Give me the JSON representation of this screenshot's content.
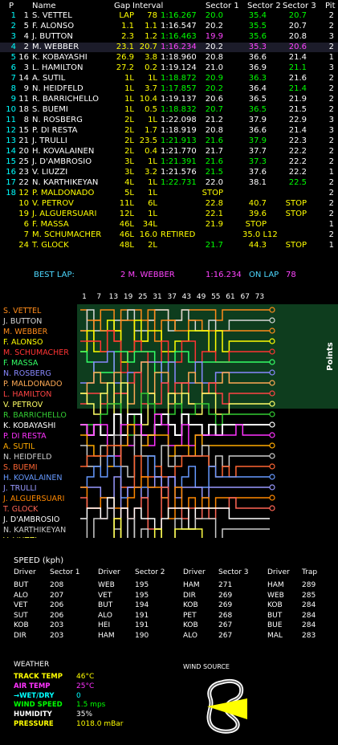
{
  "header": {
    "labels": [
      "P",
      "Name",
      "Gap",
      "Interval",
      "Sector 1",
      "Sector 2",
      "Sector 3",
      "Pit"
    ]
  },
  "colors": {
    "white": "#ffffff",
    "yellow": "#ffff00",
    "green": "#00ff00",
    "purple": "#ff44ff",
    "cyan": "#00ffff",
    "best": "#4dd8ff"
  },
  "timing": [
    {
      "p": "1",
      "num": "1",
      "name": "S. VETTEL",
      "gap": "LAP",
      "interval": "78",
      "time": "1:16.267",
      "s1": "20.0",
      "s2": "35.4",
      "s3": "20.7",
      "pit": "2",
      "c": {
        "p": "cyan",
        "num": "white",
        "name": "white",
        "gap": "yellow",
        "interval": "yellow",
        "time": "green",
        "s1": "green",
        "s2": "green",
        "s3": "green",
        "pit": "white"
      }
    },
    {
      "p": "2",
      "num": "5",
      "name": "F. ALONSO",
      "gap": "1.1",
      "interval": "1.1",
      "time": "1:16.547",
      "s1": "20.2",
      "s2": "35.5",
      "s3": "20.7",
      "pit": "2",
      "c": {
        "p": "cyan",
        "num": "white",
        "name": "white",
        "gap": "yellow",
        "interval": "yellow",
        "time": "white",
        "s1": "white",
        "s2": "green",
        "s3": "white",
        "pit": "white"
      }
    },
    {
      "p": "3",
      "num": "4",
      "name": "J. BUTTON",
      "gap": "2.3",
      "interval": "1.2",
      "time": "1:16.463",
      "s1": "19.9",
      "s2": "35.6",
      "s3": "20.8",
      "pit": "3",
      "c": {
        "p": "cyan",
        "num": "white",
        "name": "white",
        "gap": "yellow",
        "interval": "yellow",
        "time": "green",
        "s1": "purple",
        "s2": "green",
        "s3": "white",
        "pit": "white"
      }
    },
    {
      "p": "4",
      "num": "2",
      "name": "M. WEBBER",
      "gap": "23.1",
      "interval": "20.7",
      "time": "1:16.234",
      "s1": "20.2",
      "s2": "35.3",
      "s3": "20.6",
      "pit": "2",
      "c": {
        "p": "cyan",
        "num": "white",
        "name": "white",
        "gap": "yellow",
        "interval": "yellow",
        "time": "purple",
        "s1": "white",
        "s2": "purple",
        "s3": "purple",
        "pit": "white"
      },
      "hl": true
    },
    {
      "p": "5",
      "num": "16",
      "name": "K. KOBAYASHI",
      "gap": "26.9",
      "interval": "3.8",
      "time": "1:18.960",
      "s1": "20.8",
      "s2": "36.6",
      "s3": "21.4",
      "pit": "1",
      "c": {
        "p": "cyan",
        "num": "white",
        "name": "white",
        "gap": "yellow",
        "interval": "yellow",
        "time": "white",
        "s1": "white",
        "s2": "white",
        "s3": "white",
        "pit": "white"
      }
    },
    {
      "p": "6",
      "num": "3",
      "name": "L. HAMILTON",
      "gap": "27.2",
      "interval": "0.2",
      "time": "1:19.124",
      "s1": "21.0",
      "s2": "36.9",
      "s3": "21.1",
      "pit": "3",
      "c": {
        "p": "cyan",
        "num": "white",
        "name": "white",
        "gap": "yellow",
        "interval": "yellow",
        "time": "white",
        "s1": "white",
        "s2": "white",
        "s3": "green",
        "pit": "white"
      }
    },
    {
      "p": "7",
      "num": "14",
      "name": "A. SUTIL",
      "gap": "1L",
      "interval": "1L",
      "time": "1:18.872",
      "s1": "20.9",
      "s2": "36.3",
      "s3": "21.6",
      "pit": "2",
      "c": {
        "p": "cyan",
        "num": "white",
        "name": "white",
        "gap": "yellow",
        "interval": "yellow",
        "time": "green",
        "s1": "green",
        "s2": "green",
        "s3": "white",
        "pit": "white"
      }
    },
    {
      "p": "8",
      "num": "9",
      "name": "N. HEIDFELD",
      "gap": "1L",
      "interval": "3.7",
      "time": "1:17.857",
      "s1": "20.2",
      "s2": "36.4",
      "s3": "21.4",
      "pit": "2",
      "c": {
        "p": "cyan",
        "num": "white",
        "name": "white",
        "gap": "yellow",
        "interval": "yellow",
        "time": "green",
        "s1": "green",
        "s2": "white",
        "s3": "green",
        "pit": "white"
      }
    },
    {
      "p": "9",
      "num": "11",
      "name": "R. BARRICHELLO",
      "gap": "1L",
      "interval": "10.4",
      "time": "1:19.137",
      "s1": "20.6",
      "s2": "36.5",
      "s3": "21.9",
      "pit": "2",
      "c": {
        "p": "cyan",
        "num": "white",
        "name": "white",
        "gap": "yellow",
        "interval": "yellow",
        "time": "white",
        "s1": "white",
        "s2": "white",
        "s3": "white",
        "pit": "white"
      }
    },
    {
      "p": "10",
      "num": "18",
      "name": "S. BUEMI",
      "gap": "1L",
      "interval": "0.5",
      "time": "1:18.832",
      "s1": "20.7",
      "s2": "36.5",
      "s3": "21.5",
      "pit": "2",
      "c": {
        "p": "cyan",
        "num": "white",
        "name": "white",
        "gap": "yellow",
        "interval": "yellow",
        "time": "green",
        "s1": "green",
        "s2": "green",
        "s3": "white",
        "pit": "white"
      }
    },
    {
      "p": "11",
      "num": "8",
      "name": "N. ROSBERG",
      "gap": "2L",
      "interval": "1L",
      "time": "1:22.098",
      "s1": "21.2",
      "s2": "37.9",
      "s3": "22.9",
      "pit": "3",
      "c": {
        "p": "cyan",
        "num": "white",
        "name": "white",
        "gap": "yellow",
        "interval": "yellow",
        "time": "white",
        "s1": "white",
        "s2": "white",
        "s3": "white",
        "pit": "white"
      }
    },
    {
      "p": "12",
      "num": "15",
      "name": "P. DI RESTA",
      "gap": "2L",
      "interval": "1.7",
      "time": "1:18.919",
      "s1": "20.8",
      "s2": "36.6",
      "s3": "21.4",
      "pit": "3",
      "c": {
        "p": "cyan",
        "num": "white",
        "name": "white",
        "gap": "yellow",
        "interval": "yellow",
        "time": "white",
        "s1": "white",
        "s2": "white",
        "s3": "white",
        "pit": "white"
      }
    },
    {
      "p": "13",
      "num": "21",
      "name": "J. TRULLI",
      "gap": "2L",
      "interval": "23.5",
      "time": "1:21.913",
      "s1": "21.6",
      "s2": "37.9",
      "s3": "22.3",
      "pit": "2",
      "c": {
        "p": "cyan",
        "num": "white",
        "name": "white",
        "gap": "yellow",
        "interval": "yellow",
        "time": "green",
        "s1": "green",
        "s2": "green",
        "s3": "white",
        "pit": "white"
      }
    },
    {
      "p": "14",
      "num": "20",
      "name": "H. KOVALAINEN",
      "gap": "2L",
      "interval": "0.4",
      "time": "1:21.770",
      "s1": "21.7",
      "s2": "37.7",
      "s3": "22.2",
      "pit": "2",
      "c": {
        "p": "cyan",
        "num": "white",
        "name": "white",
        "gap": "yellow",
        "interval": "yellow",
        "time": "white",
        "s1": "white",
        "s2": "white",
        "s3": "white",
        "pit": "white"
      }
    },
    {
      "p": "15",
      "num": "25",
      "name": "J. D'AMBROSIO",
      "gap": "3L",
      "interval": "1L",
      "time": "1:21.391",
      "s1": "21.6",
      "s2": "37.3",
      "s3": "22.2",
      "pit": "2",
      "c": {
        "p": "cyan",
        "num": "white",
        "name": "white",
        "gap": "yellow",
        "interval": "yellow",
        "time": "green",
        "s1": "green",
        "s2": "green",
        "s3": "white",
        "pit": "white"
      }
    },
    {
      "p": "16",
      "num": "23",
      "name": "V. LIUZZI",
      "gap": "3L",
      "interval": "3.2",
      "time": "1:21.576",
      "s1": "21.5",
      "s2": "37.6",
      "s3": "22.2",
      "pit": "1",
      "c": {
        "p": "cyan",
        "num": "white",
        "name": "white",
        "gap": "yellow",
        "interval": "yellow",
        "time": "white",
        "s1": "green",
        "s2": "white",
        "s3": "white",
        "pit": "white"
      }
    },
    {
      "p": "17",
      "num": "22",
      "name": "N. KARTHIKEYAN",
      "gap": "4L",
      "interval": "1L",
      "time": "1:22.731",
      "s1": "22.0",
      "s2": "38.1",
      "s3": "22.5",
      "pit": "2",
      "c": {
        "p": "cyan",
        "num": "white",
        "name": "white",
        "gap": "yellow",
        "interval": "yellow",
        "time": "green",
        "s1": "white",
        "s2": "white",
        "s3": "green",
        "pit": "white"
      }
    },
    {
      "p": "18",
      "num": "12",
      "name": "P. MALDONADO",
      "gap": "5L",
      "interval": "1L",
      "time": "",
      "s1": "STOP",
      "s2": "",
      "s3": "",
      "pit": "2",
      "c": {
        "p": "cyan",
        "num": "yellow",
        "name": "yellow",
        "gap": "yellow",
        "interval": "yellow",
        "time": "white",
        "s1": "yellow",
        "s2": "white",
        "s3": "white",
        "pit": "white"
      }
    },
    {
      "p": "",
      "num": "10",
      "name": "V. PETROV",
      "gap": "11L",
      "interval": "6L",
      "time": "",
      "s1": "22.8",
      "s2": "40.7",
      "s3": "STOP",
      "pit": "2",
      "c": {
        "p": "cyan",
        "num": "yellow",
        "name": "yellow",
        "gap": "yellow",
        "interval": "yellow",
        "time": "white",
        "s1": "yellow",
        "s2": "yellow",
        "s3": "yellow",
        "pit": "white"
      }
    },
    {
      "p": "",
      "num": "19",
      "name": "J. ALGUERSUARI",
      "gap": "12L",
      "interval": "1L",
      "time": "",
      "s1": "22.1",
      "s2": "39.6",
      "s3": "STOP",
      "pit": "2",
      "c": {
        "p": "cyan",
        "num": "yellow",
        "name": "yellow",
        "gap": "yellow",
        "interval": "yellow",
        "time": "white",
        "s1": "yellow",
        "s2": "yellow",
        "s3": "yellow",
        "pit": "white"
      }
    },
    {
      "p": "",
      "num": "6",
      "name": "F. MASSA",
      "gap": "46L",
      "interval": "34L",
      "time": "",
      "s1": "21.9",
      "s2": "STOP",
      "s3": "",
      "pit": "1",
      "c": {
        "p": "cyan",
        "num": "yellow",
        "name": "yellow",
        "gap": "yellow",
        "interval": "yellow",
        "time": "white",
        "s1": "yellow",
        "s2": "yellow",
        "s3": "white",
        "pit": "white"
      }
    },
    {
      "p": "",
      "num": "7",
      "name": "M. SCHUMACHER",
      "gap": "46L",
      "interval": "16.0",
      "time": "RETIRED",
      "s1": "",
      "s2": "35.0 L12",
      "s3": "",
      "pit": "2",
      "c": {
        "p": "cyan",
        "num": "yellow",
        "name": "yellow",
        "gap": "yellow",
        "interval": "yellow",
        "time": "yellow",
        "s1": "white",
        "s2": "yellow",
        "s3": "white",
        "pit": "white"
      }
    },
    {
      "p": "",
      "num": "24",
      "name": "T. GLOCK",
      "gap": "48L",
      "interval": "2L",
      "time": "",
      "s1": "21.7",
      "s2": "44.3",
      "s3": "STOP",
      "pit": "1",
      "c": {
        "p": "cyan",
        "num": "yellow",
        "name": "yellow",
        "gap": "yellow",
        "interval": "yellow",
        "time": "white",
        "s1": "green",
        "s2": "yellow",
        "s3": "yellow",
        "pit": "white"
      }
    }
  ],
  "best_lap": {
    "label": "BEST LAP:",
    "driver": "2 M. WEBBER",
    "time": "1:16.234",
    "on_lap_label": "ON LAP",
    "lap": "78"
  },
  "lap_chart": {
    "lap_ticks": [
      "1",
      "7",
      "13",
      "19",
      "25",
      "31",
      "37",
      "43",
      "49",
      "55",
      "61",
      "67",
      "73"
    ],
    "points_label": "Points",
    "drivers": [
      {
        "name": "S. VETTEL",
        "color": "#ff8c1a"
      },
      {
        "name": "J. BUTTON",
        "color": "#d9d9d9"
      },
      {
        "name": "M. WEBBER",
        "color": "#ff8c1a"
      },
      {
        "name": "F. ALONSO",
        "color": "#ffff00"
      },
      {
        "name": "M. SCHUMACHER",
        "color": "#ff3333"
      },
      {
        "name": "F. MASSA",
        "color": "#33ff66"
      },
      {
        "name": "N. ROSBERG",
        "color": "#8888ff"
      },
      {
        "name": "P. MALDONADO",
        "color": "#ffaa55"
      },
      {
        "name": "L. HAMILTON",
        "color": "#ff4444"
      },
      {
        "name": "V. PETROV",
        "color": "#ffff66"
      },
      {
        "name": "R. BARRICHELLO",
        "color": "#33cc33"
      },
      {
        "name": "K. KOBAYASHI",
        "color": "#ffffff"
      },
      {
        "name": "P. DI RESTA",
        "color": "#ff33ff"
      },
      {
        "name": "A. SUTIL",
        "color": "#ffaa00"
      },
      {
        "name": "N. HEIDFELD",
        "color": "#cccccc"
      },
      {
        "name": "S. BUEMI",
        "color": "#ff6633"
      },
      {
        "name": "H. KOVALAINEN",
        "color": "#6699ff"
      },
      {
        "name": "J. TRULLI",
        "color": "#9999ff"
      },
      {
        "name": "J. ALGUERSUARI",
        "color": "#ff8800"
      },
      {
        "name": "T. GLOCK",
        "color": "#ff6655"
      },
      {
        "name": "J. D'AMBROSIO",
        "color": "#ffffff"
      },
      {
        "name": "N. KARTHIKEYAN",
        "color": "#cccccc"
      },
      {
        "name": "V. LIUZZI",
        "color": "#ffff44"
      }
    ]
  },
  "speed": {
    "title": "SPEED (kph)",
    "sections": [
      {
        "h1": "Driver",
        "h2": "Sector 1",
        "rows": [
          [
            "BUT",
            "208"
          ],
          [
            "ALO",
            "207"
          ],
          [
            "VET",
            "206"
          ],
          [
            "SUT",
            "206"
          ],
          [
            "KOB",
            "203"
          ],
          [
            "DIR",
            "203"
          ]
        ]
      },
      {
        "h1": "Driver",
        "h2": "Sector 2",
        "rows": [
          [
            "WEB",
            "195"
          ],
          [
            "VET",
            "195"
          ],
          [
            "BUT",
            "194"
          ],
          [
            "ALO",
            "191"
          ],
          [
            "HEI",
            "191"
          ],
          [
            "HAM",
            "190"
          ]
        ]
      },
      {
        "h1": "Driver",
        "h2": "Sector 3",
        "rows": [
          [
            "HAM",
            "271"
          ],
          [
            "DIR",
            "269"
          ],
          [
            "KOB",
            "269"
          ],
          [
            "PET",
            "268"
          ],
          [
            "KOB",
            "267"
          ],
          [
            "ALO",
            "267"
          ]
        ]
      },
      {
        "h1": "Driver",
        "h2": "Trap",
        "rows": [
          [
            "HAM",
            "289"
          ],
          [
            "WEB",
            "285"
          ],
          [
            "KOB",
            "284"
          ],
          [
            "BUT",
            "284"
          ],
          [
            "BUE",
            "284"
          ],
          [
            "MAL",
            "283"
          ]
        ]
      }
    ]
  },
  "weather": {
    "title": "WEATHER",
    "rows": [
      {
        "label": "TRACK TEMP",
        "value": "46°C",
        "color": "#ffff00"
      },
      {
        "label": "AIR TEMP",
        "value": "25°C",
        "color": "#ff33ff"
      },
      {
        "label": "WET/DRY",
        "value": "0",
        "color": "#00ffff"
      },
      {
        "label": "WIND SPEED",
        "value": "1.5 mps",
        "color": "#00ff00"
      },
      {
        "label": "HUMIDITY",
        "value": "35%",
        "color": "#ffffff"
      },
      {
        "label": "PRESSURE",
        "value": "1018.0 mBar",
        "color": "#ffff00"
      }
    ],
    "wind_label": "WIND SOURCE"
  }
}
